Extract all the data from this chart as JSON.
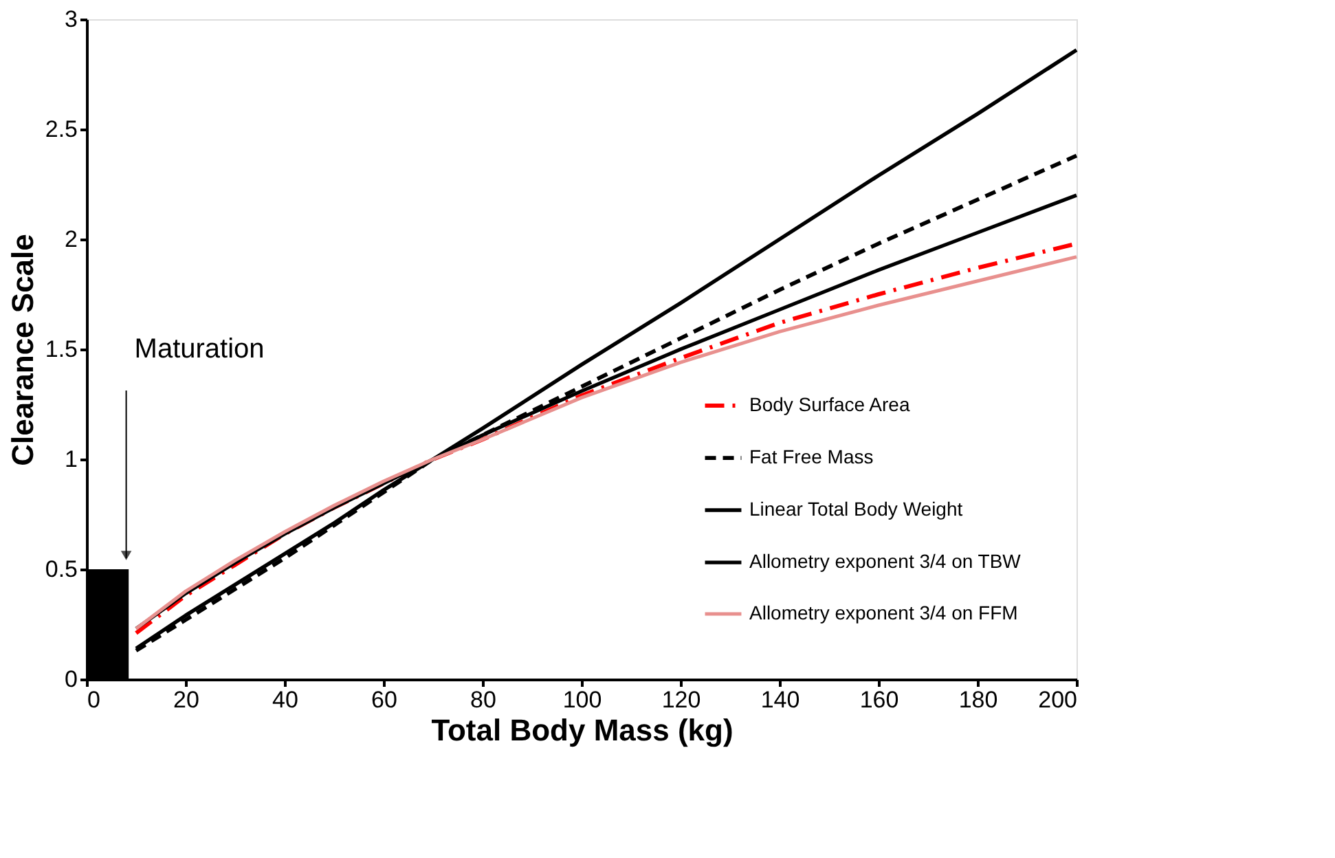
{
  "chart_data": {
    "type": "line",
    "xlabel": "Total Body Mass  (kg)",
    "ylabel": "Clearance Scale",
    "xlim": [
      0,
      200
    ],
    "xticks": [
      0,
      20,
      40,
      60,
      80,
      100,
      120,
      140,
      160,
      180,
      200
    ],
    "ylim": [
      0,
      3
    ],
    "yticks": [
      0,
      0.5,
      1,
      1.5,
      2,
      2.5,
      3
    ],
    "grid": false,
    "legend": "bottom right",
    "annotations": [
      {
        "text": "Maturation",
        "x": 8,
        "y": 0.5
      }
    ],
    "series": [
      {
        "type": "area",
        "color": "#000000",
        "x": [
          0,
          8.5
        ],
        "values": [
          0.5,
          0.5
        ]
      },
      {
        "name": "Body Surface Area",
        "color": "#ff0000",
        "line_style": "dashdot",
        "x": [
          10,
          20,
          30,
          40,
          50,
          60,
          70,
          80,
          100,
          120,
          140,
          160,
          180,
          200
        ],
        "values": [
          0.21,
          0.38,
          0.52,
          0.66,
          0.78,
          0.89,
          1.0,
          1.09,
          1.29,
          1.46,
          1.62,
          1.75,
          1.87,
          1.98
        ]
      },
      {
        "name": "Fat Free Mass",
        "color": "#000000",
        "line_style": "dashed",
        "x": [
          10,
          20,
          30,
          40,
          50,
          60,
          70,
          80,
          100,
          120,
          140,
          160,
          180,
          200
        ],
        "values": [
          0.13,
          0.27,
          0.41,
          0.55,
          0.7,
          0.85,
          1.0,
          1.11,
          1.33,
          1.55,
          1.77,
          1.98,
          2.18,
          2.38
        ]
      },
      {
        "name": "Linear Total Body Weight",
        "color": "#000000",
        "line_style": "solid",
        "x": [
          10,
          20,
          30,
          40,
          50,
          60,
          70,
          80,
          100,
          120,
          140,
          160,
          180,
          200
        ],
        "values": [
          0.14,
          0.29,
          0.43,
          0.57,
          0.71,
          0.86,
          1.0,
          1.14,
          1.43,
          1.71,
          2.0,
          2.29,
          2.57,
          2.86
        ]
      },
      {
        "name": "Allometry exponent 3/4 on TBW",
        "color": "#000000",
        "line_style": "solid",
        "x": [
          10,
          20,
          30,
          40,
          50,
          60,
          70,
          80,
          100,
          120,
          140,
          160,
          180,
          200
        ],
        "values": [
          0.23,
          0.39,
          0.53,
          0.66,
          0.78,
          0.89,
          1.0,
          1.11,
          1.31,
          1.5,
          1.68,
          1.86,
          2.03,
          2.2
        ]
      },
      {
        "name": "Allometry exponent 3/4 on FFM",
        "color": "#e8908e",
        "line_style": "solid",
        "x": [
          10,
          20,
          30,
          40,
          50,
          60,
          70,
          80,
          100,
          120,
          140,
          160,
          180,
          200
        ],
        "values": [
          0.23,
          0.4,
          0.54,
          0.67,
          0.79,
          0.9,
          1.0,
          1.09,
          1.28,
          1.44,
          1.58,
          1.7,
          1.81,
          1.92
        ]
      }
    ]
  }
}
